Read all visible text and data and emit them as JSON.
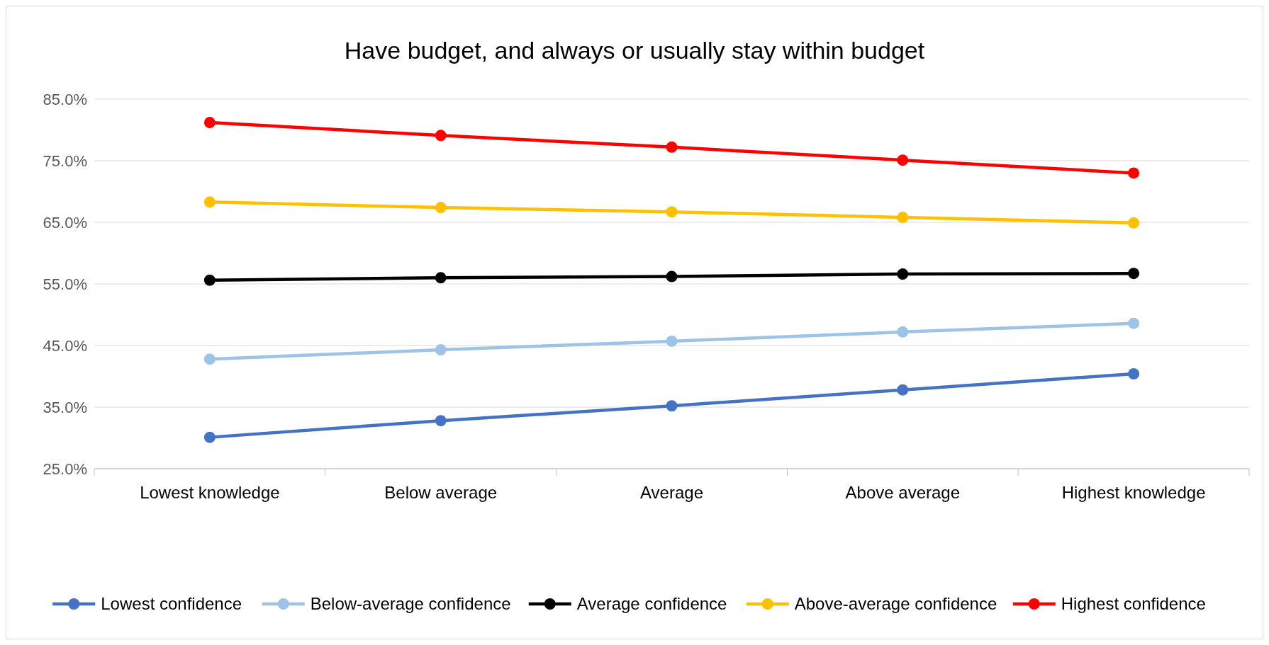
{
  "chart_data": {
    "type": "line",
    "title": "Have budget, and always or usually stay within budget",
    "categories": [
      "Lowest knowledge",
      "Below average",
      "Average",
      "Above average",
      "Highest knowledge"
    ],
    "series": [
      {
        "name": "Lowest confidence",
        "color": "#4472c4",
        "values": [
          30.1,
          32.8,
          35.2,
          37.8,
          40.4
        ]
      },
      {
        "name": "Below-average confidence",
        "color": "#9dc3e6",
        "values": [
          42.8,
          44.3,
          45.7,
          47.2,
          48.6
        ]
      },
      {
        "name": "Average confidence",
        "color": "#000000",
        "values": [
          55.6,
          56.0,
          56.2,
          56.6,
          56.7
        ]
      },
      {
        "name": "Above-average confidence",
        "color": "#ffc000",
        "values": [
          68.3,
          67.4,
          66.7,
          65.8,
          64.9
        ]
      },
      {
        "name": "Highest confidence",
        "color": "#ff0000",
        "values": [
          81.2,
          79.1,
          77.2,
          75.1,
          73.0
        ]
      }
    ],
    "ylim": [
      25,
      85
    ],
    "yticks": [
      {
        "value": 25,
        "label": "25.0%"
      },
      {
        "value": 35,
        "label": "35.0%"
      },
      {
        "value": 45,
        "label": "45.0%"
      },
      {
        "value": 55,
        "label": "55.0%"
      },
      {
        "value": 65,
        "label": "65.0%"
      },
      {
        "value": 75,
        "label": "75.0%"
      },
      {
        "value": 85,
        "label": "85.0%"
      }
    ],
    "grid": "y",
    "legend": "bottom",
    "marker": "circle",
    "line_style": "solid"
  }
}
